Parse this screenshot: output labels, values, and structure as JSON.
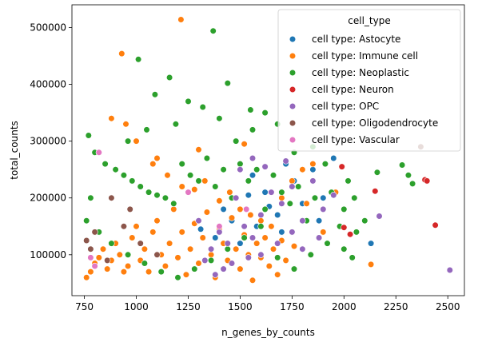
{
  "chart_data": {
    "type": "scatter",
    "title": "",
    "xlabel": "n_genes_by_counts",
    "ylabel": "total_counts",
    "xlim": [
      690,
      2580
    ],
    "ylim": [
      28000,
      540000
    ],
    "xticks": [
      750,
      1000,
      1250,
      1500,
      1750,
      2000,
      2250,
      2500
    ],
    "yticks": [
      100000,
      200000,
      300000,
      400000,
      500000
    ],
    "xtick_labels": [
      "750",
      "1000",
      "1250",
      "1500",
      "1750",
      "2000",
      "2250",
      "2500"
    ],
    "ytick_labels": [
      "100000",
      "200000",
      "300000",
      "400000",
      "500000"
    ],
    "grid": false,
    "legend": {
      "title": "cell_type",
      "placement": "top-right"
    },
    "series": [
      {
        "name": "cell type: Astocyte",
        "color": "#1f77b4",
        "points": [
          [
            1310,
            145000
          ],
          [
            1420,
            180000
          ],
          [
            1500,
            120000
          ],
          [
            1560,
            240000
          ],
          [
            1620,
            210000
          ],
          [
            1680,
            170000
          ],
          [
            1720,
            260000
          ],
          [
            1760,
            230000
          ],
          [
            1800,
            190000
          ],
          [
            1850,
            250000
          ],
          [
            1900,
            200000
          ],
          [
            2130,
            120000
          ],
          [
            1540,
            205000
          ],
          [
            1460,
            160000
          ],
          [
            1380,
            130000
          ],
          [
            1700,
            140000
          ],
          [
            1640,
            185000
          ],
          [
            1580,
            150000
          ],
          [
            1880,
            160000
          ],
          [
            1950,
            270000
          ]
        ]
      },
      {
        "name": "cell type: Immune cell",
        "color": "#ff7f0e",
        "points": [
          [
            1215,
            514000
          ],
          [
            930,
            454000
          ],
          [
            880,
            340000
          ],
          [
            950,
            330000
          ],
          [
            1000,
            300000
          ],
          [
            1080,
            260000
          ],
          [
            1150,
            240000
          ],
          [
            1220,
            220000
          ],
          [
            1280,
            215000
          ],
          [
            1330,
            230000
          ],
          [
            1400,
            195000
          ],
          [
            1450,
            210000
          ],
          [
            1500,
            180000
          ],
          [
            1550,
            170000
          ],
          [
            1600,
            160000
          ],
          [
            1650,
            150000
          ],
          [
            1700,
            200000
          ],
          [
            1750,
            230000
          ],
          [
            1800,
            250000
          ],
          [
            1850,
            260000
          ],
          [
            760,
            60000
          ],
          [
            780,
            70000
          ],
          [
            800,
            85000
          ],
          [
            820,
            95000
          ],
          [
            840,
            110000
          ],
          [
            860,
            75000
          ],
          [
            880,
            90000
          ],
          [
            900,
            120000
          ],
          [
            920,
            100000
          ],
          [
            940,
            70000
          ],
          [
            960,
            80000
          ],
          [
            980,
            130000
          ],
          [
            1000,
            150000
          ],
          [
            1020,
            90000
          ],
          [
            1040,
            110000
          ],
          [
            1060,
            70000
          ],
          [
            1080,
            140000
          ],
          [
            1100,
            160000
          ],
          [
            1120,
            100000
          ],
          [
            1140,
            80000
          ],
          [
            1160,
            120000
          ],
          [
            1180,
            180000
          ],
          [
            1200,
            95000
          ],
          [
            1220,
            140000
          ],
          [
            1240,
            65000
          ],
          [
            1260,
            110000
          ],
          [
            1280,
            155000
          ],
          [
            1300,
            85000
          ],
          [
            1320,
            130000
          ],
          [
            1340,
            175000
          ],
          [
            1360,
            100000
          ],
          [
            1380,
            60000
          ],
          [
            1400,
            145000
          ],
          [
            1420,
            120000
          ],
          [
            1440,
            90000
          ],
          [
            1460,
            165000
          ],
          [
            1480,
            110000
          ],
          [
            1500,
            75000
          ],
          [
            1520,
            135000
          ],
          [
            1540,
            100000
          ],
          [
            1560,
            55000
          ],
          [
            1580,
            120000
          ],
          [
            1600,
            95000
          ],
          [
            1620,
            130000
          ],
          [
            1640,
            80000
          ],
          [
            1660,
            110000
          ],
          [
            1680,
            65000
          ],
          [
            1700,
            125000
          ],
          [
            1720,
            90000
          ],
          [
            1760,
            115000
          ],
          [
            1820,
            190000
          ],
          [
            1900,
            140000
          ],
          [
            1960,
            210000
          ],
          [
            2130,
            83000
          ],
          [
            1520,
            295000
          ],
          [
            1300,
            285000
          ],
          [
            1100,
            270000
          ]
        ]
      },
      {
        "name": "cell type: Neoplastic",
        "color": "#2ca02c",
        "points": [
          [
            1370,
            494000
          ],
          [
            1010,
            444000
          ],
          [
            1160,
            412000
          ],
          [
            1440,
            402000
          ],
          [
            1090,
            382000
          ],
          [
            1250,
            370000
          ],
          [
            1320,
            360000
          ],
          [
            1550,
            355000
          ],
          [
            1620,
            350000
          ],
          [
            1680,
            330000
          ],
          [
            1050,
            320000
          ],
          [
            960,
            300000
          ],
          [
            770,
            310000
          ],
          [
            800,
            280000
          ],
          [
            850,
            260000
          ],
          [
            900,
            250000
          ],
          [
            940,
            240000
          ],
          [
            980,
            230000
          ],
          [
            1020,
            220000
          ],
          [
            1060,
            210000
          ],
          [
            1100,
            205000
          ],
          [
            1140,
            200000
          ],
          [
            1180,
            190000
          ],
          [
            1220,
            260000
          ],
          [
            1260,
            240000
          ],
          [
            1300,
            230000
          ],
          [
            1340,
            270000
          ],
          [
            1380,
            220000
          ],
          [
            1420,
            250000
          ],
          [
            1460,
            200000
          ],
          [
            1500,
            260000
          ],
          [
            1540,
            230000
          ],
          [
            1580,
            250000
          ],
          [
            1620,
            180000
          ],
          [
            1660,
            240000
          ],
          [
            1700,
            210000
          ],
          [
            1740,
            190000
          ],
          [
            1780,
            220000
          ],
          [
            1820,
            160000
          ],
          [
            1860,
            200000
          ],
          [
            1900,
            180000
          ],
          [
            1940,
            210000
          ],
          [
            1980,
            150000
          ],
          [
            2020,
            230000
          ],
          [
            2060,
            140000
          ],
          [
            2100,
            160000
          ],
          [
            2160,
            245000
          ],
          [
            2280,
            258000
          ],
          [
            2330,
            225000
          ],
          [
            2310,
            240000
          ],
          [
            760,
            160000
          ],
          [
            780,
            200000
          ],
          [
            820,
            140000
          ],
          [
            880,
            120000
          ],
          [
            960,
            100000
          ],
          [
            1040,
            85000
          ],
          [
            1120,
            70000
          ],
          [
            1200,
            60000
          ],
          [
            1280,
            75000
          ],
          [
            1360,
            90000
          ],
          [
            1440,
            110000
          ],
          [
            1520,
            130000
          ],
          [
            1600,
            150000
          ],
          [
            1680,
            95000
          ],
          [
            1760,
            75000
          ],
          [
            1840,
            100000
          ],
          [
            1920,
            120000
          ],
          [
            2000,
            110000
          ],
          [
            2040,
            95000
          ],
          [
            1480,
            300000
          ],
          [
            1560,
            320000
          ],
          [
            1400,
            340000
          ],
          [
            1190,
            330000
          ],
          [
            1910,
            260000
          ],
          [
            1850,
            290000
          ],
          [
            1760,
            280000
          ],
          [
            2050,
            200000
          ],
          [
            2000,
            180000
          ]
        ]
      },
      {
        "name": "cell type: Neuron",
        "color": "#d62728",
        "points": [
          [
            2390,
            232000
          ],
          [
            2400,
            230000
          ],
          [
            2440,
            152000
          ],
          [
            2150,
            212000
          ],
          [
            1990,
            255000
          ],
          [
            2000,
            148000
          ],
          [
            2030,
            136000
          ]
        ]
      },
      {
        "name": "cell type: OPC",
        "color": "#9467bd",
        "points": [
          [
            2510,
            73000
          ],
          [
            2170,
            168000
          ],
          [
            1950,
            205000
          ],
          [
            1900,
            180000
          ],
          [
            1850,
            230000
          ],
          [
            1800,
            160000
          ],
          [
            1750,
            140000
          ],
          [
            1700,
            190000
          ],
          [
            1650,
            210000
          ],
          [
            1600,
            170000
          ],
          [
            1560,
            130000
          ],
          [
            1520,
            150000
          ],
          [
            1480,
            200000
          ],
          [
            1440,
            120000
          ],
          [
            1400,
            140000
          ],
          [
            1360,
            110000
          ],
          [
            1330,
            90000
          ],
          [
            1300,
            160000
          ],
          [
            1620,
            255000
          ],
          [
            1560,
            270000
          ],
          [
            1500,
            250000
          ],
          [
            1750,
            220000
          ],
          [
            1680,
            120000
          ],
          [
            1600,
            100000
          ],
          [
            1540,
            95000
          ],
          [
            1460,
            85000
          ],
          [
            1420,
            75000
          ],
          [
            1380,
            65000
          ],
          [
            1800,
            110000
          ],
          [
            1880,
            130000
          ],
          [
            1720,
            265000
          ]
        ]
      },
      {
        "name": "cell type: Oligodendrocyte",
        "color": "#8c564b",
        "points": [
          [
            760,
            125000
          ],
          [
            780,
            110000
          ],
          [
            800,
            140000
          ],
          [
            860,
            90000
          ],
          [
            880,
            200000
          ],
          [
            940,
            150000
          ],
          [
            970,
            180000
          ],
          [
            2370,
            290000
          ],
          [
            1020,
            120000
          ],
          [
            1100,
            100000
          ]
        ]
      },
      {
        "name": "cell type: Vascular",
        "color": "#e377c2",
        "points": [
          [
            780,
            95000
          ],
          [
            800,
            80000
          ],
          [
            820,
            280000
          ],
          [
            1250,
            210000
          ],
          [
            1400,
            150000
          ],
          [
            1530,
            180000
          ]
        ]
      }
    ]
  }
}
